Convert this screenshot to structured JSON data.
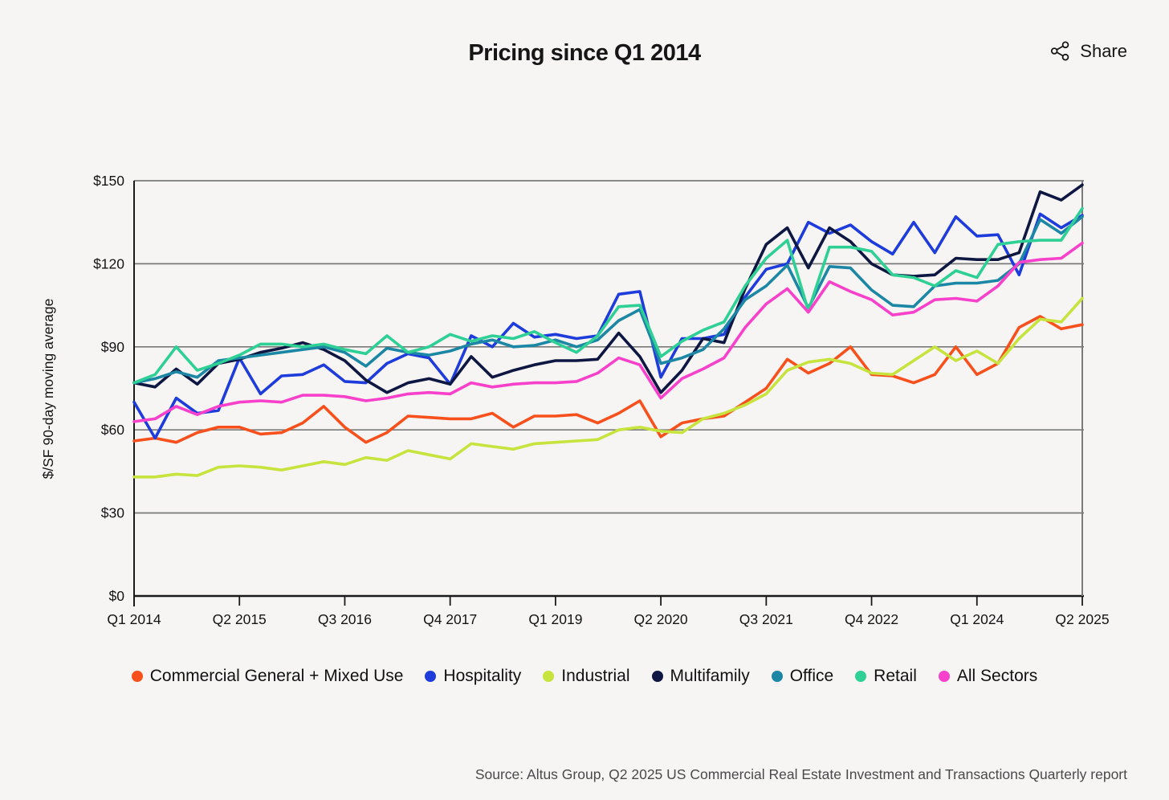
{
  "header": {
    "title": "Pricing since Q1 2014",
    "share_label": "Share"
  },
  "chart_data": {
    "type": "line",
    "title": "Pricing since Q1 2014",
    "xlabel": "",
    "ylabel": "$/SF 90-day moving average",
    "ylim": [
      0,
      150
    ],
    "yticks": [
      0,
      30,
      60,
      90,
      120,
      150
    ],
    "ytick_labels": [
      "$0",
      "$30",
      "$60",
      "$90",
      "$120",
      "$150"
    ],
    "x_start": "Q1 2014",
    "x_end": "Q2 2025",
    "x_frequency": "quarterly",
    "n_points": 46,
    "xtick_indices": [
      0,
      5,
      10,
      15,
      20,
      25,
      30,
      35,
      40,
      45
    ],
    "xtick_labels": [
      "Q1 2014",
      "Q2 2015",
      "Q3 2016",
      "Q4 2017",
      "Q1 2019",
      "Q2 2020",
      "Q3 2021",
      "Q4 2022",
      "Q1 2024",
      "Q2 2025"
    ],
    "grid": "horizontal",
    "legend_position": "bottom",
    "series": [
      {
        "name": "Commercial General + Mixed Use",
        "color": "#F8501D",
        "values": [
          56,
          57,
          55.5,
          59,
          61,
          61,
          58.5,
          59,
          62.5,
          68.5,
          61,
          55.5,
          59,
          65,
          64.5,
          64,
          64,
          66,
          61,
          65,
          65,
          65.5,
          62.5,
          66,
          70.5,
          57.5,
          62.5,
          64,
          65,
          70,
          75,
          85.5,
          80.5,
          84,
          90,
          80,
          79.5,
          77,
          80,
          90,
          80,
          84,
          97,
          101,
          96.5,
          98
        ]
      },
      {
        "name": "Hospitality",
        "color": "#1E3CDB",
        "values": [
          70,
          57,
          71.5,
          66,
          67,
          86,
          73,
          79.5,
          80,
          83.5,
          77.5,
          77,
          84,
          87.5,
          86,
          76.5,
          94,
          90,
          98.5,
          93.5,
          94.5,
          93,
          94,
          109,
          110,
          79,
          93,
          93,
          94.5,
          108,
          118,
          120,
          135,
          131,
          134,
          128,
          123.5,
          135,
          124,
          137,
          130,
          130.5,
          116,
          138,
          133,
          137.5
        ]
      },
      {
        "name": "Industrial",
        "color": "#C6E33E",
        "values": [
          43,
          43,
          44,
          43.5,
          46.5,
          47,
          46.5,
          45.5,
          47,
          48.5,
          47.5,
          50,
          49,
          52.5,
          51,
          49.5,
          55,
          54,
          53,
          55,
          55.5,
          56,
          56.5,
          60,
          61,
          59.5,
          59,
          64,
          66,
          69,
          73,
          81.5,
          84.5,
          85.5,
          84,
          80.5,
          80,
          85,
          90,
          85,
          88.5,
          84,
          93,
          100,
          99,
          107.5
        ]
      },
      {
        "name": "Multifamily",
        "color": "#0D1742",
        "values": [
          77,
          75.5,
          82,
          76.5,
          84,
          85.5,
          88,
          89.5,
          91.5,
          89,
          85,
          78,
          73.5,
          77,
          78.5,
          76.5,
          86.5,
          79,
          81.5,
          83.5,
          85,
          85,
          85.5,
          95,
          86.5,
          73.5,
          81.5,
          93,
          91.5,
          111,
          127,
          133,
          118.5,
          133,
          128,
          120,
          116,
          115.5,
          116,
          122,
          121.5,
          121.5,
          124,
          146,
          143,
          148.5
        ]
      },
      {
        "name": "Office",
        "color": "#1B87A4",
        "values": [
          77,
          78.5,
          81,
          79,
          85,
          86,
          87,
          88,
          89,
          90,
          88,
          83,
          89.5,
          88,
          87,
          88.5,
          91,
          92.5,
          90,
          90.5,
          92.5,
          90,
          92.5,
          99.5,
          103.5,
          84,
          86,
          89,
          96.5,
          107,
          112,
          119.5,
          104,
          119,
          118.5,
          110.5,
          105,
          104.5,
          112,
          113,
          113,
          114,
          120,
          136,
          131,
          137
        ]
      },
      {
        "name": "Retail",
        "color": "#2FD096",
        "values": [
          77,
          80,
          90,
          81.5,
          84,
          87,
          91,
          91,
          90,
          91,
          89,
          87.5,
          94,
          88,
          90,
          94.5,
          92,
          94,
          93,
          95.5,
          91.5,
          88,
          94,
          104.5,
          105,
          86.5,
          92,
          96,
          99,
          112,
          122,
          128.5,
          103,
          126,
          126,
          124.5,
          116,
          115,
          112,
          117.5,
          115,
          127,
          128,
          128.5,
          128.5,
          140
        ]
      },
      {
        "name": "All Sectors",
        "color": "#F841CB",
        "values": [
          63,
          64,
          68.5,
          65.5,
          68.5,
          70,
          70.5,
          70,
          72.5,
          72.5,
          72,
          70.5,
          71.5,
          73,
          73.5,
          73,
          77,
          75.5,
          76.5,
          77,
          77,
          77.5,
          80.5,
          86,
          83.5,
          71.5,
          78.5,
          82,
          86,
          97,
          105.5,
          111,
          102.5,
          113.5,
          110,
          107,
          101.5,
          102.5,
          107,
          107.5,
          106.5,
          112,
          120.5,
          121.5,
          122,
          127.5
        ]
      }
    ]
  },
  "footer": {
    "source": "Source: Altus Group, Q2 2025 US Commercial Real Estate Investment and Transactions Quarterly report"
  }
}
